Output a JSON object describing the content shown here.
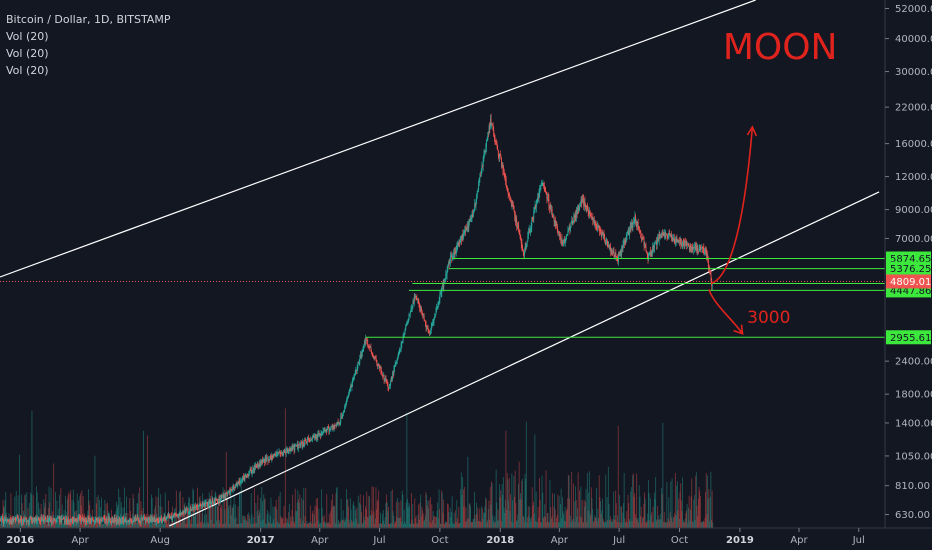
{
  "header": {
    "symbol": "Bitcoin / Dollar, 1D, BITSTAMP",
    "indicators": [
      "Vol (20)",
      "Vol (20)",
      "Vol (20)"
    ]
  },
  "annotations": {
    "moon": "MOON",
    "target": "3000"
  },
  "colors": {
    "background": "#131722",
    "up": "#26a69a",
    "down": "#ef5350",
    "level": "#3de83d",
    "drawing": "#e0231d",
    "channel": "#ffffff",
    "price_line": "#ef5350"
  },
  "chart_data": {
    "type": "candlestick",
    "scale": "log",
    "ylim": [
      560,
      56000
    ],
    "yticks": [
      52000,
      40000,
      30000,
      22000,
      16000,
      12000,
      9000,
      7000,
      2400,
      1800,
      1400,
      1050,
      810,
      630
    ],
    "xticks": [
      "2016",
      "Apr",
      "Aug",
      "2017",
      "Apr",
      "Jul",
      "Oct",
      "2018",
      "Apr",
      "Jul",
      "Oct",
      "2019",
      "Apr",
      "Jul"
    ],
    "price_path": [
      [
        "2016-08-01",
        600
      ],
      [
        "2016-11-01",
        720
      ],
      [
        "2017-01-03",
        1000
      ],
      [
        "2017-03-01",
        1150
      ],
      [
        "2017-05-01",
        1400
      ],
      [
        "2017-06-10",
        2900
      ],
      [
        "2017-07-15",
        1900
      ],
      [
        "2017-08-25",
        4300
      ],
      [
        "2017-09-15",
        3000
      ],
      [
        "2017-10-15",
        5700
      ],
      [
        "2017-11-20",
        8500
      ],
      [
        "2017-12-17",
        19500
      ],
      [
        "2018-02-06",
        6200
      ],
      [
        "2018-03-05",
        11500
      ],
      [
        "2018-04-06",
        6600
      ],
      [
        "2018-05-05",
        9800
      ],
      [
        "2018-06-28",
        5800
      ],
      [
        "2018-07-25",
        8400
      ],
      [
        "2018-08-14",
        6000
      ],
      [
        "2018-09-05",
        7400
      ],
      [
        "2018-10-15",
        6500
      ],
      [
        "2018-11-10",
        6300
      ],
      [
        "2018-11-20",
        4600
      ]
    ],
    "levels": [
      {
        "label": "5874.65",
        "value": 5874.65,
        "from": "2017-10-20"
      },
      {
        "label": "5376.25",
        "value": 5376.25,
        "from": "2017-10-15"
      },
      {
        "label": "4725.38",
        "value": 4725.38,
        "from": "2017-08-20"
      },
      {
        "label": "4447.86",
        "value": 4447.86,
        "from": "2017-08-15"
      },
      {
        "label": "2955.61",
        "value": 2955.61,
        "from": "2017-06-10"
      }
    ],
    "current_price": {
      "label": "4809.01",
      "value": 4809.01
    },
    "channel": {
      "upper": [
        [
          "2015-12-01",
          5000
        ],
        [
          "2019-01-25",
          56000
        ]
      ],
      "lower": [
        [
          "2016-08-15",
          570
        ],
        [
          "2019-08-01",
          10500
        ]
      ]
    }
  }
}
